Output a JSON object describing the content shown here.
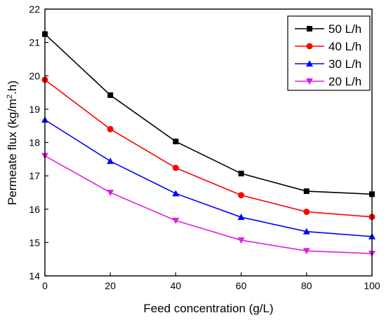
{
  "chart_data": {
    "type": "line",
    "title": "",
    "xlabel": "Feed concentration (g/L)",
    "ylabel_main": "Permeate flux (kg/m",
    "ylabel_sup": "2",
    "ylabel_tail": ".h)",
    "xlim": [
      0,
      100
    ],
    "ylim": [
      14,
      22
    ],
    "x_ticks": [
      0,
      20,
      40,
      60,
      80,
      100
    ],
    "y_ticks": [
      14,
      15,
      16,
      17,
      18,
      19,
      20,
      21,
      22
    ],
    "x_tick_labels": [
      "0",
      "20",
      "40",
      "60",
      "80",
      "100"
    ],
    "y_tick_labels": [
      "14",
      "15",
      "16",
      "17",
      "18",
      "19",
      "20",
      "21",
      "22"
    ],
    "grid": false,
    "legend_position": "top-right",
    "x": [
      0,
      20,
      40,
      60,
      80,
      100
    ],
    "series": [
      {
        "name": "50 L/h",
        "color": "#000000",
        "marker": "square",
        "values": [
          21.25,
          19.42,
          18.03,
          17.07,
          16.54,
          16.45
        ]
      },
      {
        "name": "40 L/h",
        "color": "#ff0000",
        "marker": "circle",
        "values": [
          19.88,
          18.4,
          17.24,
          16.42,
          15.92,
          15.77
        ]
      },
      {
        "name": "30 L/h",
        "color": "#0000ff",
        "marker": "triangle-up",
        "values": [
          18.68,
          17.44,
          16.47,
          15.76,
          15.33,
          15.18
        ]
      },
      {
        "name": "20 L/h",
        "color": "#e01ee0",
        "marker": "triangle-down",
        "values": [
          17.6,
          16.5,
          15.66,
          15.07,
          14.75,
          14.67
        ]
      }
    ]
  }
}
